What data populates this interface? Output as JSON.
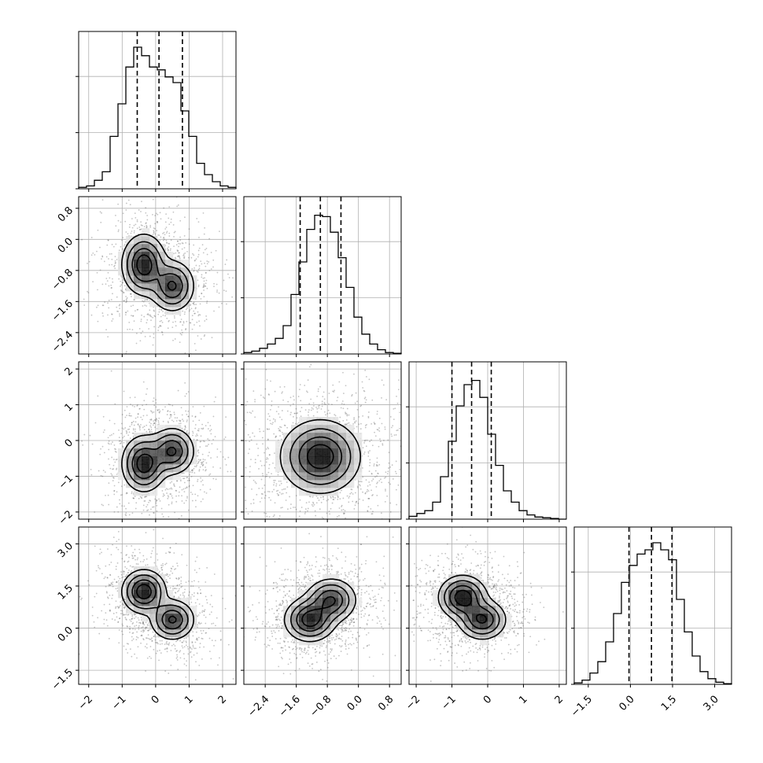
{
  "chart_data": {
    "type": "corner",
    "title": "",
    "dim": 4,
    "grid": true,
    "parameters": [
      {
        "index": 0,
        "label": "",
        "range": [
          -2.3,
          2.4
        ],
        "ticks": [
          "−2",
          "−1",
          "0",
          "1",
          "2"
        ],
        "tick_values": [
          -2,
          -1,
          0,
          1,
          2
        ],
        "quantiles": [
          -0.55,
          0.1,
          0.8
        ],
        "hist": [
          0.01,
          0.02,
          0.06,
          0.12,
          0.37,
          0.6,
          0.86,
          1.0,
          0.94,
          0.86,
          0.84,
          0.79,
          0.75,
          0.55,
          0.37,
          0.18,
          0.1,
          0.05,
          0.02,
          0.01
        ]
      },
      {
        "index": 1,
        "label": "",
        "range": [
          -2.95,
          1.1
        ],
        "ticks": [
          "−2.4",
          "−1.6",
          "−0.8",
          "0.0",
          "0.8"
        ],
        "tick_values": [
          -2.4,
          -1.6,
          -0.8,
          0.0,
          0.8
        ],
        "quantiles": [
          -1.5,
          -0.98,
          -0.45
        ],
        "hist": [
          0.01,
          0.02,
          0.04,
          0.07,
          0.11,
          0.2,
          0.42,
          0.65,
          0.88,
          0.98,
          0.97,
          0.86,
          0.68,
          0.47,
          0.26,
          0.14,
          0.07,
          0.03,
          0.01,
          0.005
        ]
      },
      {
        "index": 2,
        "label": "",
        "range": [
          -2.2,
          2.2
        ],
        "ticks": [
          "−2",
          "−1",
          "0",
          "1",
          "2"
        ],
        "tick_values": [
          -2,
          -1,
          0,
          1,
          2
        ],
        "quantiles": [
          -1.0,
          -0.45,
          0.1
        ],
        "hist": [
          0.02,
          0.04,
          0.06,
          0.12,
          0.3,
          0.55,
          0.8,
          0.95,
          0.98,
          0.86,
          0.6,
          0.38,
          0.2,
          0.12,
          0.06,
          0.03,
          0.015,
          0.01,
          0.005,
          0.0
        ]
      },
      {
        "index": 3,
        "label": "",
        "range": [
          -2.0,
          3.6
        ],
        "ticks": [
          "−1.5",
          "0.0",
          "1.5",
          "3.0"
        ],
        "tick_values": [
          -1.5,
          0.0,
          1.5,
          3.0
        ],
        "quantiles": [
          -0.05,
          0.75,
          1.48
        ],
        "hist": [
          0.01,
          0.03,
          0.08,
          0.16,
          0.3,
          0.5,
          0.72,
          0.84,
          0.92,
          0.95,
          1.0,
          0.95,
          0.88,
          0.6,
          0.37,
          0.2,
          0.09,
          0.04,
          0.015,
          0.005
        ]
      }
    ],
    "pairs": [
      {
        "row": 1,
        "col": 0,
        "blobs": [
          {
            "x": -0.35,
            "y": -0.65,
            "sx": 0.32,
            "sy": 0.38,
            "w": 1.0
          },
          {
            "x": 0.5,
            "y": -1.2,
            "sx": 0.32,
            "sy": 0.32,
            "w": 0.85
          }
        ]
      },
      {
        "row": 2,
        "col": 0,
        "blobs": [
          {
            "x": -0.35,
            "y": -0.65,
            "sx": 0.32,
            "sy": 0.38,
            "w": 1.0
          },
          {
            "x": 0.5,
            "y": -0.3,
            "sx": 0.32,
            "sy": 0.32,
            "w": 0.85
          }
        ]
      },
      {
        "row": 2,
        "col": 1,
        "blobs": [
          {
            "x": -0.98,
            "y": -0.45,
            "sx": 0.5,
            "sy": 0.5,
            "w": 1.0
          }
        ]
      },
      {
        "row": 3,
        "col": 0,
        "blobs": [
          {
            "x": -0.35,
            "y": 1.3,
            "sx": 0.32,
            "sy": 0.38,
            "w": 1.0
          },
          {
            "x": 0.5,
            "y": 0.3,
            "sx": 0.32,
            "sy": 0.35,
            "w": 0.85
          }
        ]
      },
      {
        "row": 3,
        "col": 1,
        "blobs": [
          {
            "x": -1.25,
            "y": 0.3,
            "sx": 0.32,
            "sy": 0.38,
            "w": 1.0
          },
          {
            "x": -0.7,
            "y": 1.0,
            "sx": 0.32,
            "sy": 0.38,
            "w": 0.85
          }
        ]
      },
      {
        "row": 3,
        "col": 2,
        "blobs": [
          {
            "x": -0.7,
            "y": 1.1,
            "sx": 0.33,
            "sy": 0.38,
            "w": 1.0
          },
          {
            "x": -0.15,
            "y": 0.3,
            "sx": 0.33,
            "sy": 0.35,
            "w": 0.85
          }
        ]
      }
    ],
    "contour_levels": [
      0.8,
      0.55,
      0.3,
      0.12
    ]
  }
}
